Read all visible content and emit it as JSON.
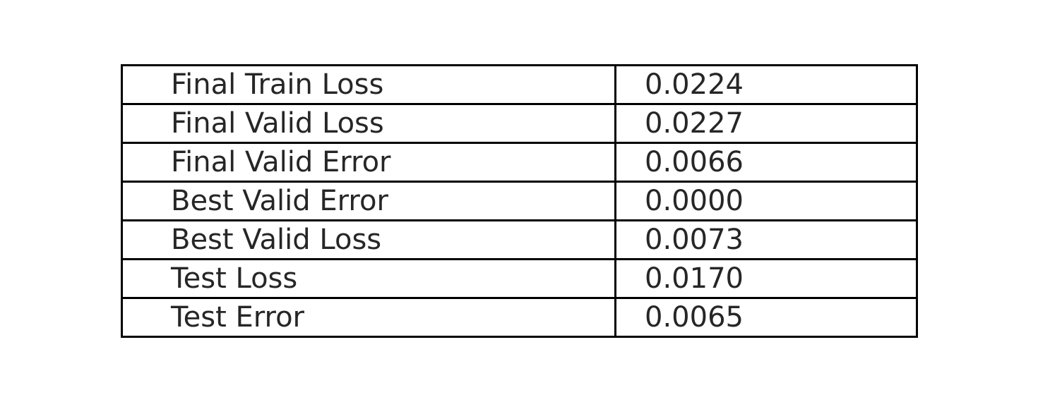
{
  "chart_data": {
    "type": "table",
    "rows": [
      {
        "metric": "Final Train Loss",
        "value": "0.0224"
      },
      {
        "metric": "Final Valid Loss",
        "value": "0.0227"
      },
      {
        "metric": "Final Valid Error",
        "value": "0.0066"
      },
      {
        "metric": "Best Valid Error",
        "value": "0.0000"
      },
      {
        "metric": "Best Valid Loss",
        "value": "0.0073"
      },
      {
        "metric": "Test Loss",
        "value": "0.0170"
      },
      {
        "metric": "Test Error",
        "value": "0.0065"
      }
    ]
  }
}
